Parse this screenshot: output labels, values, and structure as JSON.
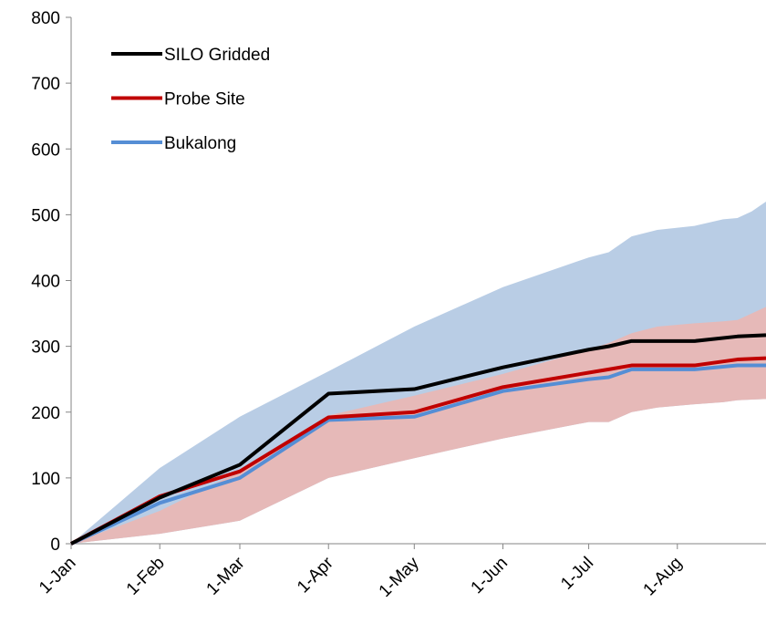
{
  "chart_data": {
    "type": "line",
    "x": [
      0,
      31,
      59,
      90,
      120,
      151,
      181,
      188,
      196,
      218,
      233,
      243
    ],
    "series": [
      {
        "name": "SILO Gridded",
        "color": "#000000",
        "values": [
          0,
          70,
          120,
          228,
          235,
          268,
          295,
          300,
          308,
          308,
          315,
          317
        ]
      },
      {
        "name": "Probe Site",
        "color": "#c00000",
        "values": [
          0,
          72,
          110,
          192,
          200,
          238,
          260,
          265,
          271,
          271,
          280,
          282
        ]
      },
      {
        "name": "Bukalong",
        "color": "#558ed5",
        "values": [
          0,
          62,
          100,
          188,
          193,
          232,
          250,
          253,
          265,
          265,
          271,
          271
        ]
      }
    ],
    "bands": [
      {
        "color": "#b9cde5",
        "x": [
          0,
          31,
          59,
          90,
          120,
          151,
          181,
          188,
          196,
          205,
          218,
          228,
          233,
          238,
          243
        ],
        "upper": [
          0,
          115,
          193,
          262,
          330,
          390,
          435,
          443,
          467,
          477,
          483,
          493,
          495,
          505,
          520
        ],
        "lower": [
          0,
          15,
          35,
          100,
          130,
          160,
          185,
          185,
          200,
          207,
          212,
          215,
          218,
          219,
          220
        ]
      },
      {
        "color": "#e6b9b8",
        "x": [
          0,
          31,
          59,
          90,
          120,
          151,
          181,
          188,
          196,
          205,
          218,
          228,
          233,
          238,
          243
        ],
        "upper": [
          0,
          50,
          110,
          195,
          225,
          258,
          295,
          305,
          320,
          330,
          335,
          338,
          340,
          350,
          360
        ],
        "lower": [
          0,
          15,
          35,
          100,
          130,
          160,
          185,
          185,
          200,
          207,
          212,
          215,
          218,
          219,
          220
        ]
      }
    ],
    "xlim": [
      0,
      243
    ],
    "xticks": [
      {
        "value": 0,
        "label": "1-Jan"
      },
      {
        "value": 31,
        "label": "1-Feb"
      },
      {
        "value": 59,
        "label": "1-Mar"
      },
      {
        "value": 90,
        "label": "1-Apr"
      },
      {
        "value": 120,
        "label": "1-May"
      },
      {
        "value": 151,
        "label": "1-Jun"
      },
      {
        "value": 181,
        "label": "1-Jul"
      },
      {
        "value": 212,
        "label": "1-Aug"
      }
    ],
    "ylim": [
      0,
      800
    ],
    "yticks": [
      0,
      100,
      200,
      300,
      400,
      500,
      600,
      700,
      800
    ],
    "legend": "top-left"
  }
}
